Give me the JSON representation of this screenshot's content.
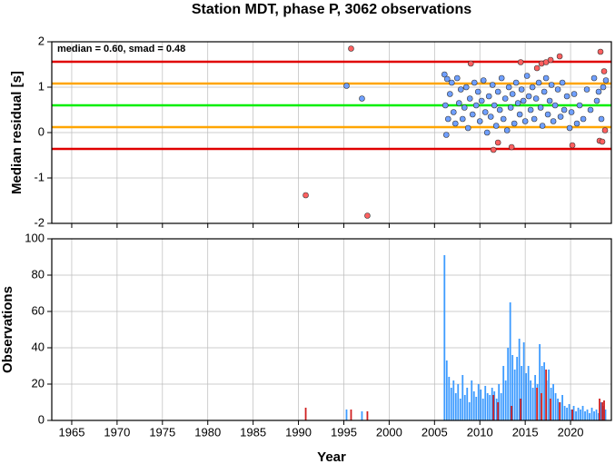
{
  "chart_data": [
    {
      "type": "scatter",
      "title": "Station MDT, phase P, 3062 observations",
      "ylabel": "Median residual [s]",
      "annotation": "median = 0.60, smad = 0.48",
      "xlim": [
        1962.8,
        2024.5
      ],
      "ylim": [
        -2,
        2
      ],
      "yticks": [
        -2,
        -1,
        0,
        1,
        2
      ],
      "grid": true,
      "hlines": [
        {
          "value": 1.56,
          "color": "#e00000"
        },
        {
          "value": 1.08,
          "color": "#ffa500"
        },
        {
          "value": 0.6,
          "color": "#00ee00"
        },
        {
          "value": 0.12,
          "color": "#ffa500"
        },
        {
          "value": -0.36,
          "color": "#e00000"
        }
      ],
      "series": [
        {
          "color": "#6f9fff",
          "x": [
            1995.3,
            1997.0,
            2006.1,
            2006.2,
            2006.3,
            2006.4,
            2006.5,
            2006.7,
            2006.9,
            2007.1,
            2007.3,
            2007.5,
            2007.7,
            2007.9,
            2008.1,
            2008.3,
            2008.5,
            2008.7,
            2008.9,
            2009.2,
            2009.4,
            2009.6,
            2009.8,
            2010.0,
            2010.2,
            2010.4,
            2010.6,
            2010.8,
            2011.0,
            2011.2,
            2011.4,
            2011.6,
            2011.8,
            2012.0,
            2012.2,
            2012.4,
            2012.6,
            2012.8,
            2013.0,
            2013.2,
            2013.4,
            2013.6,
            2013.8,
            2014.0,
            2014.2,
            2014.4,
            2014.6,
            2014.8,
            2015.0,
            2015.2,
            2015.4,
            2015.6,
            2015.8,
            2016.0,
            2016.2,
            2016.5,
            2016.7,
            2016.9,
            2017.1,
            2017.3,
            2017.5,
            2017.7,
            2017.9,
            2018.1,
            2018.3,
            2018.6,
            2018.9,
            2019.1,
            2019.3,
            2019.6,
            2019.9,
            2020.1,
            2020.4,
            2020.7,
            2021.0,
            2021.4,
            2021.8,
            2022.2,
            2022.6,
            2022.9,
            2023.1,
            2023.4,
            2023.6,
            2023.9
          ],
          "values": [
            1.03,
            0.75,
            1.28,
            0.6,
            -0.05,
            1.18,
            0.3,
            0.85,
            1.1,
            0.45,
            0.2,
            1.2,
            0.65,
            0.95,
            0.3,
            0.55,
            1.0,
            0.1,
            0.75,
            0.4,
            1.1,
            0.6,
            0.9,
            0.25,
            0.7,
            1.15,
            0.45,
            0.0,
            0.8,
            0.35,
            1.05,
            0.6,
            0.15,
            0.9,
            0.5,
            1.2,
            0.3,
            0.75,
            0.05,
            1.0,
            0.55,
            0.85,
            0.2,
            1.1,
            0.65,
            0.4,
            0.95,
            0.7,
            0.25,
            1.25,
            0.8,
            0.5,
            1.0,
            0.3,
            0.75,
            1.1,
            0.55,
            0.15,
            0.9,
            1.2,
            0.4,
            0.7,
            1.05,
            0.25,
            0.6,
            0.95,
            0.35,
            1.1,
            0.5,
            0.8,
            0.1,
            0.45,
            0.85,
            0.2,
            0.6,
            0.3,
            0.95,
            0.5,
            1.2,
            0.7,
            0.9,
            0.3,
            1.0,
            1.15
          ]
        },
        {
          "color": "#ff6060",
          "x": [
            1990.8,
            1995.8,
            1997.6,
            2009.0,
            2011.5,
            2012.0,
            2013.5,
            2014.5,
            2016.3,
            2016.8,
            2017.3,
            2017.8,
            2018.8,
            2020.2,
            2023.2,
            2023.5,
            2023.3,
            2023.7,
            2023.8
          ],
          "values": [
            -1.38,
            1.85,
            -1.83,
            1.52,
            -0.38,
            -0.22,
            -0.32,
            1.55,
            1.42,
            1.52,
            1.55,
            1.6,
            1.68,
            -0.28,
            -0.18,
            -0.2,
            1.78,
            1.35,
            0.05
          ]
        }
      ]
    },
    {
      "type": "bar",
      "ylabel": "Observations",
      "xlabel": "Year",
      "xlim": [
        1962.8,
        2024.5
      ],
      "xticks": [
        1965,
        1970,
        1975,
        1980,
        1985,
        1990,
        1995,
        2000,
        2005,
        2010,
        2015,
        2020
      ],
      "ylim": [
        0,
        100
      ],
      "yticks": [
        0,
        20,
        40,
        60,
        80,
        100
      ],
      "grid": true,
      "series": [
        {
          "color": "#3d9bff",
          "x": [
            1995.3,
            1997.0,
            2006.1,
            2006.35,
            2006.6,
            2006.85,
            2007.1,
            2007.35,
            2007.6,
            2007.85,
            2008.1,
            2008.35,
            2008.6,
            2008.85,
            2009.1,
            2009.35,
            2009.6,
            2009.85,
            2010.1,
            2010.35,
            2010.6,
            2010.85,
            2011.1,
            2011.35,
            2011.6,
            2011.85,
            2012.1,
            2012.35,
            2012.6,
            2012.85,
            2013.1,
            2013.35,
            2013.6,
            2013.85,
            2014.1,
            2014.35,
            2014.6,
            2014.85,
            2015.1,
            2015.35,
            2015.6,
            2015.85,
            2016.1,
            2016.35,
            2016.6,
            2016.85,
            2017.1,
            2017.35,
            2017.6,
            2017.85,
            2018.1,
            2018.35,
            2018.6,
            2018.85,
            2019.1,
            2019.35,
            2019.6,
            2019.85,
            2020.1,
            2020.35,
            2020.6,
            2020.85,
            2021.1,
            2021.35,
            2021.6,
            2021.85,
            2022.1,
            2022.35,
            2022.6,
            2022.85,
            2023.1,
            2023.35,
            2023.6,
            2023.85
          ],
          "values": [
            6,
            5,
            91,
            33,
            24,
            18,
            22,
            15,
            20,
            12,
            25,
            14,
            18,
            10,
            22,
            16,
            13,
            20,
            17,
            12,
            19,
            15,
            14,
            18,
            16,
            12,
            20,
            15,
            30,
            22,
            40,
            65,
            36,
            28,
            35,
            45,
            30,
            43,
            26,
            30,
            22,
            18,
            25,
            20,
            42,
            30,
            32,
            22,
            28,
            18,
            20,
            15,
            12,
            10,
            14,
            8,
            7,
            9,
            6,
            8,
            5,
            7,
            6,
            8,
            5,
            6,
            4,
            7,
            5,
            6,
            4,
            10,
            8,
            6
          ]
        },
        {
          "color": "#d02020",
          "x": [
            1990.8,
            1995.8,
            1997.6,
            2011.5,
            2012.0,
            2013.5,
            2014.5,
            2016.3,
            2016.8,
            2017.3,
            2017.8,
            2018.8,
            2020.2,
            2023.2,
            2023.5,
            2023.7
          ],
          "values": [
            7,
            6,
            5,
            14,
            10,
            8,
            12,
            18,
            15,
            28,
            12,
            10,
            6,
            12,
            10,
            11
          ]
        }
      ]
    }
  ]
}
